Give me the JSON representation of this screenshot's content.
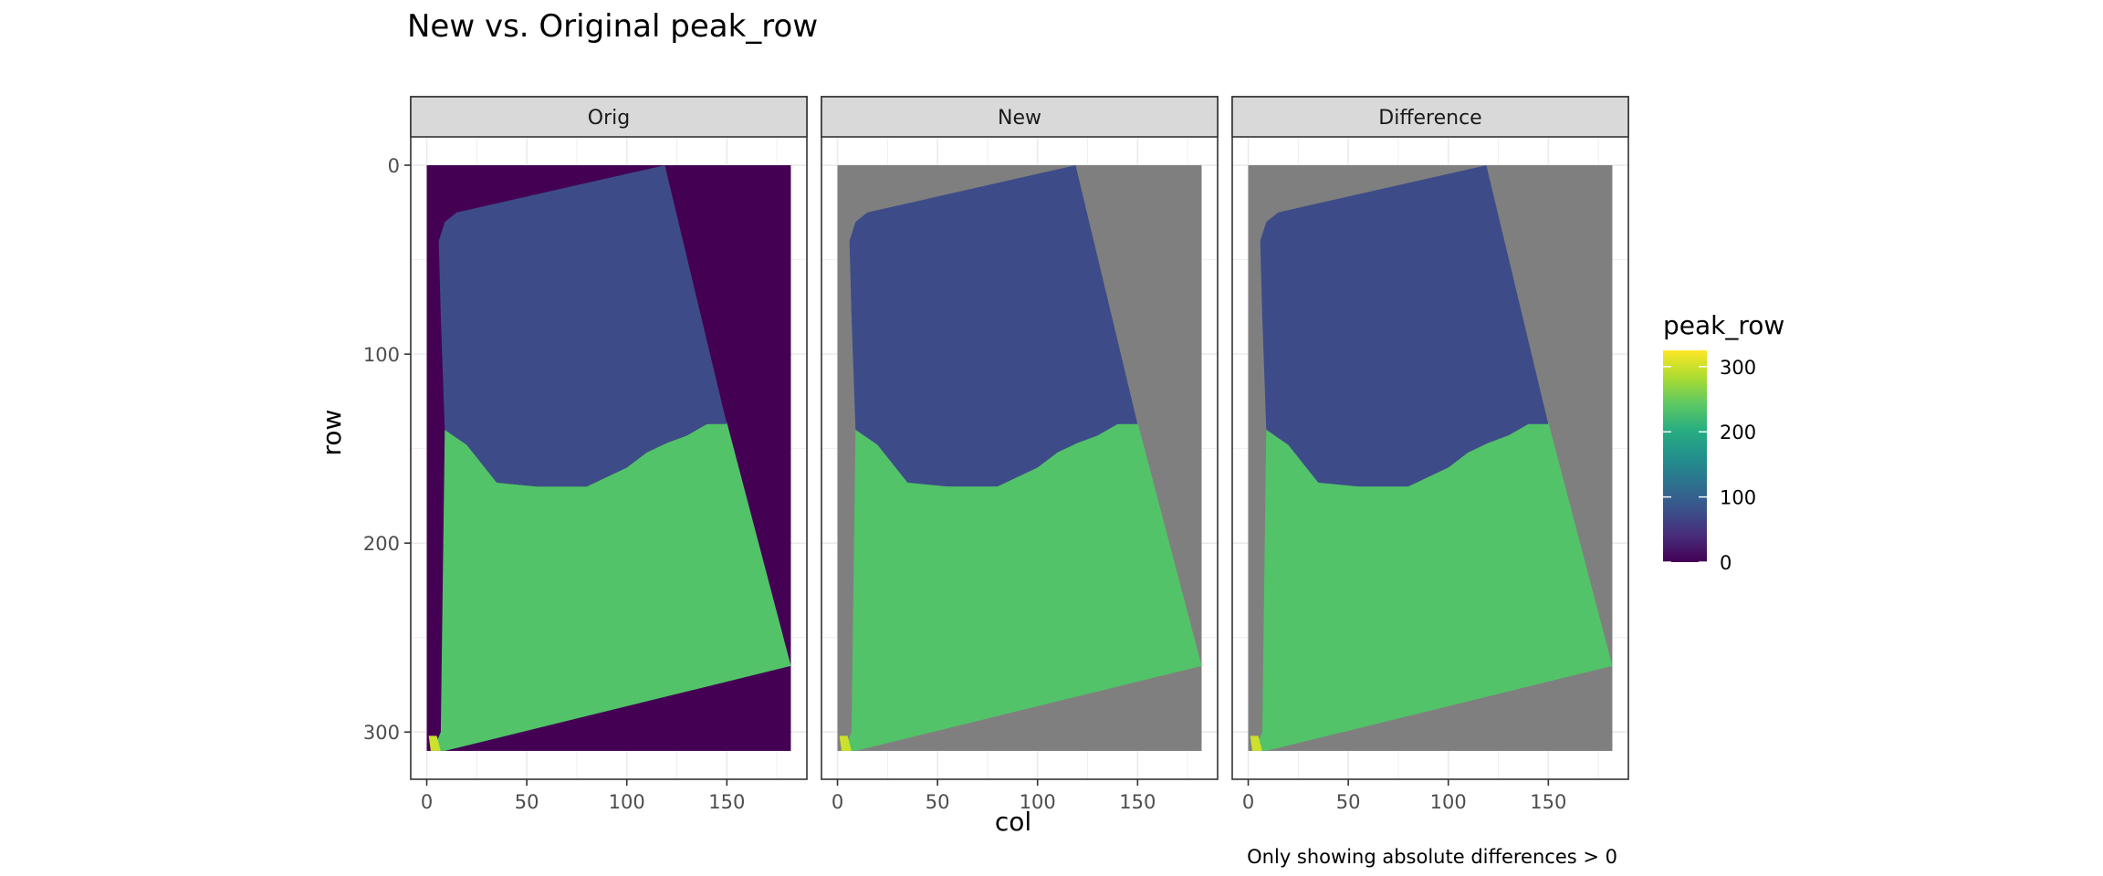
{
  "chart_data": {
    "type": "heatmap",
    "title": "New vs. Original peak_row",
    "xlabel": "col",
    "ylabel": "row",
    "caption": "Only showing absolute differences > 0",
    "facets": [
      "Orig",
      "New",
      "Difference"
    ],
    "xlim": [
      -8,
      190
    ],
    "ylim": [
      325,
      -15
    ],
    "y_reversed": true,
    "x_ticks": [
      0,
      50,
      100,
      150
    ],
    "y_ticks": [
      0,
      100,
      200,
      300
    ],
    "grid": true,
    "na_color": "#7f7f7f",
    "legend": {
      "title": "peak_row",
      "position": "right",
      "breaks": [
        0,
        100,
        200,
        300
      ],
      "limits": [
        0,
        325
      ],
      "palette": "viridis"
    },
    "image_extent": {
      "col": [
        0,
        182
      ],
      "row": [
        0,
        310
      ]
    },
    "regions": {
      "background_value": 0,
      "top_block_value": 75,
      "bottom_block_value": 235,
      "corner_value": 300
    }
  }
}
